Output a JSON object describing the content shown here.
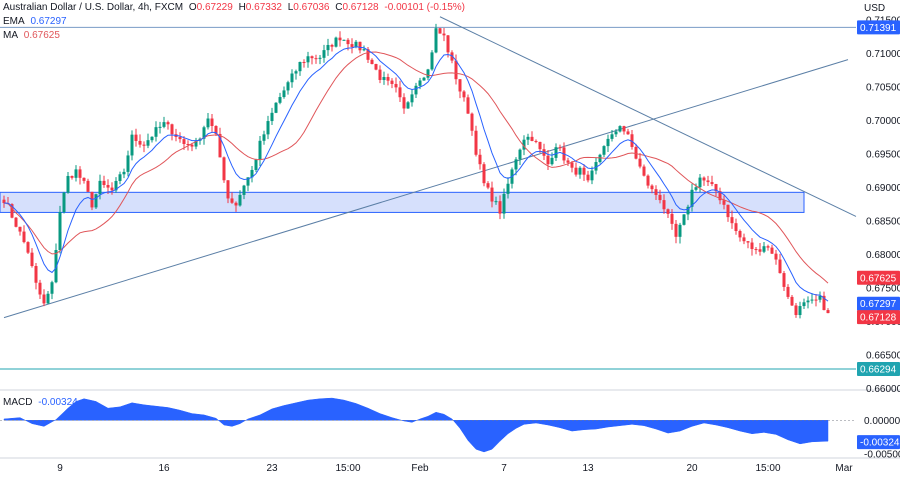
{
  "header": {
    "symbol": "Australian Dollar / U.S. Dollar, 4h, FXCM",
    "o_label": "O",
    "o_value": "0.67229",
    "h_label": "H",
    "h_value": "0.67332",
    "l_label": "L",
    "l_value": "0.67036",
    "c_label": "C",
    "c_value": "0.67128",
    "change": "-0.00101 (-0.15%)"
  },
  "indicators": {
    "ema_label": "EMA",
    "ema_value": "0.67297",
    "ma_label": "MA",
    "ma_value": "0.67625",
    "macd_label": "MACD",
    "macd_value": "-0.00324"
  },
  "colors": {
    "up": "#089981",
    "down": "#f23645",
    "ema": "#2962ff",
    "ma": "#e0565a",
    "trendline": "#5b7fa6",
    "zone_fill": "#c8d6fb",
    "zone_border": "#2962ff",
    "level_line": "#7a9cc6",
    "teal": "#20a4b0",
    "macd_fill": "#2962ff"
  },
  "chart_data": {
    "type": "candlestick",
    "currency": "USD",
    "price_axis": {
      "ticks": [
        "0.71500",
        "0.71000",
        "0.70500",
        "0.70000",
        "0.69500",
        "0.69000",
        "0.68500",
        "0.68000",
        "0.67500",
        "0.67000",
        "0.66500",
        "0.66000"
      ],
      "tick_values": [
        0.715,
        0.71,
        0.705,
        0.7,
        0.695,
        0.69,
        0.685,
        0.68,
        0.675,
        0.67,
        0.665,
        0.66
      ],
      "range": [
        0.6598,
        0.718
      ]
    },
    "macd_axis": {
      "ticks": [
        "0.00000",
        "-0.00500"
      ],
      "tick_values": [
        0.0,
        -0.005
      ],
      "range": [
        -0.0056,
        0.0045
      ]
    },
    "x_labels": [
      "9",
      "16",
      "23",
      "15:00",
      "Feb",
      "7",
      "13",
      "20",
      "15:00",
      "Mar"
    ],
    "x_label_bars": [
      14,
      40,
      67,
      86,
      104,
      125,
      146,
      172,
      191,
      210
    ],
    "bar_count": 207,
    "price_badges": [
      {
        "label": "0.71391",
        "value": 0.71391,
        "color": "#2962ff"
      },
      {
        "label": "0.67625",
        "value": 0.67625,
        "color": "#f23645"
      },
      {
        "label": "0.67297",
        "value": 0.67297,
        "color": "#2962ff"
      },
      {
        "label": "0.67128",
        "value": 0.67128,
        "color": "#f23645"
      },
      {
        "label": "0.66294",
        "value": 0.66294,
        "color": "#20a4b0"
      }
    ],
    "macd_badge": {
      "label": "-0.00324",
      "value": -0.00324,
      "color": "#2962ff"
    },
    "horizontal_levels": [
      0.71391,
      0.66294
    ],
    "support_zone": {
      "from_bar": 0,
      "to_bar": 200,
      "low": 0.6863,
      "high": 0.6893
    },
    "trendlines": [
      {
        "from": [
          0,
          0.6706
        ],
        "to": [
          211,
          0.7091
        ]
      },
      {
        "from": [
          109,
          0.7155
        ],
        "to": [
          213,
          0.6857
        ]
      }
    ],
    "close_anchors": [
      [
        0,
        0.6883
      ],
      [
        3,
        0.6845
      ],
      [
        6,
        0.6805
      ],
      [
        8,
        0.6755
      ],
      [
        10,
        0.6725
      ],
      [
        12,
        0.6755
      ],
      [
        14,
        0.6865
      ],
      [
        16,
        0.6915
      ],
      [
        18,
        0.6925
      ],
      [
        20,
        0.6905
      ],
      [
        22,
        0.6875
      ],
      [
        24,
        0.6905
      ],
      [
        27,
        0.6895
      ],
      [
        30,
        0.6925
      ],
      [
        32,
        0.6975
      ],
      [
        35,
        0.6965
      ],
      [
        38,
        0.6985
      ],
      [
        40,
        0.6995
      ],
      [
        42,
        0.6985
      ],
      [
        45,
        0.6965
      ],
      [
        48,
        0.6965
      ],
      [
        51,
        0.7005
      ],
      [
        53,
        0.6975
      ],
      [
        56,
        0.6885
      ],
      [
        58,
        0.6875
      ],
      [
        60,
        0.6905
      ],
      [
        62,
        0.6925
      ],
      [
        64,
        0.6965
      ],
      [
        66,
        0.6995
      ],
      [
        68,
        0.7025
      ],
      [
        70,
        0.7045
      ],
      [
        72,
        0.7065
      ],
      [
        74,
        0.7085
      ],
      [
        76,
        0.7095
      ],
      [
        79,
        0.7095
      ],
      [
        82,
        0.7115
      ],
      [
        84,
        0.7125
      ],
      [
        87,
        0.7115
      ],
      [
        90,
        0.7105
      ],
      [
        92,
        0.7085
      ],
      [
        94,
        0.7065
      ],
      [
        96,
        0.7055
      ],
      [
        98,
        0.7045
      ],
      [
        100,
        0.7015
      ],
      [
        102,
        0.7045
      ],
      [
        104,
        0.7065
      ],
      [
        106,
        0.7075
      ],
      [
        108,
        0.7135
      ],
      [
        110,
        0.7125
      ],
      [
        112,
        0.7085
      ],
      [
        114,
        0.7045
      ],
      [
        116,
        0.7015
      ],
      [
        118,
        0.6955
      ],
      [
        120,
        0.6905
      ],
      [
        122,
        0.6885
      ],
      [
        124,
        0.6865
      ],
      [
        126,
        0.6905
      ],
      [
        128,
        0.6945
      ],
      [
        130,
        0.6975
      ],
      [
        132,
        0.6975
      ],
      [
        134,
        0.6955
      ],
      [
        136,
        0.6935
      ],
      [
        138,
        0.6965
      ],
      [
        140,
        0.6945
      ],
      [
        142,
        0.6925
      ],
      [
        144,
        0.6925
      ],
      [
        146,
        0.6905
      ],
      [
        148,
        0.6935
      ],
      [
        150,
        0.6965
      ],
      [
        152,
        0.6975
      ],
      [
        154,
        0.6995
      ],
      [
        156,
        0.6975
      ],
      [
        158,
        0.6945
      ],
      [
        160,
        0.6915
      ],
      [
        162,
        0.6895
      ],
      [
        164,
        0.6885
      ],
      [
        166,
        0.6855
      ],
      [
        168,
        0.6825
      ],
      [
        170,
        0.6855
      ],
      [
        172,
        0.6895
      ],
      [
        174,
        0.6915
      ],
      [
        176,
        0.6905
      ],
      [
        178,
        0.6895
      ],
      [
        180,
        0.6875
      ],
      [
        182,
        0.6845
      ],
      [
        184,
        0.6825
      ],
      [
        186,
        0.6815
      ],
      [
        188,
        0.6805
      ],
      [
        190,
        0.6815
      ],
      [
        192,
        0.6805
      ],
      [
        194,
        0.6775
      ],
      [
        196,
        0.6735
      ],
      [
        198,
        0.6715
      ],
      [
        200,
        0.6725
      ],
      [
        202,
        0.6728
      ],
      [
        204,
        0.6733
      ],
      [
        206,
        0.6713
      ]
    ],
    "macd_anchors": [
      [
        0,
        0.0002
      ],
      [
        4,
        0.0004
      ],
      [
        7,
        -0.0005
      ],
      [
        10,
        -0.0009
      ],
      [
        13,
        0.0001
      ],
      [
        16,
        0.0018
      ],
      [
        18,
        0.0028
      ],
      [
        20,
        0.0032
      ],
      [
        23,
        0.0028
      ],
      [
        26,
        0.0018
      ],
      [
        29,
        0.002
      ],
      [
        32,
        0.0026
      ],
      [
        35,
        0.0023
      ],
      [
        38,
        0.0021
      ],
      [
        41,
        0.0019
      ],
      [
        44,
        0.0015
      ],
      [
        47,
        0.001
      ],
      [
        50,
        0.0008
      ],
      [
        53,
        0.0003
      ],
      [
        55,
        -0.0007
      ],
      [
        57,
        -0.0009
      ],
      [
        59,
        -0.0005
      ],
      [
        61,
        0.0002
      ],
      [
        64,
        0.0008
      ],
      [
        67,
        0.0017
      ],
      [
        70,
        0.0022
      ],
      [
        73,
        0.0026
      ],
      [
        76,
        0.003
      ],
      [
        79,
        0.0032
      ],
      [
        82,
        0.0033
      ],
      [
        85,
        0.003
      ],
      [
        88,
        0.0025
      ],
      [
        91,
        0.0018
      ],
      [
        94,
        0.001
      ],
      [
        97,
        0.0004
      ],
      [
        100,
        -0.0001
      ],
      [
        102,
        -0.0003
      ],
      [
        104,
        0.0002
      ],
      [
        106,
        0.0006
      ],
      [
        108,
        0.0012
      ],
      [
        110,
        0.0009
      ],
      [
        112,
        0.0002
      ],
      [
        114,
        -0.0012
      ],
      [
        116,
        -0.003
      ],
      [
        118,
        -0.0043
      ],
      [
        120,
        -0.0047
      ],
      [
        122,
        -0.0043
      ],
      [
        124,
        -0.0031
      ],
      [
        126,
        -0.002
      ],
      [
        128,
        -0.0012
      ],
      [
        130,
        -0.0006
      ],
      [
        133,
        -0.0004
      ],
      [
        136,
        -0.0007
      ],
      [
        139,
        -0.0011
      ],
      [
        142,
        -0.0016
      ],
      [
        145,
        -0.0014
      ],
      [
        148,
        -0.0013
      ],
      [
        151,
        -0.001
      ],
      [
        154,
        -0.0008
      ],
      [
        157,
        -0.0006
      ],
      [
        160,
        -0.0008
      ],
      [
        163,
        -0.0013
      ],
      [
        166,
        -0.0019
      ],
      [
        169,
        -0.0016
      ],
      [
        172,
        -0.0009
      ],
      [
        175,
        -0.0004
      ],
      [
        178,
        -0.0007
      ],
      [
        181,
        -0.0011
      ],
      [
        184,
        -0.0016
      ],
      [
        187,
        -0.002
      ],
      [
        190,
        -0.0018
      ],
      [
        193,
        -0.0021
      ],
      [
        196,
        -0.0029
      ],
      [
        199,
        -0.0035
      ],
      [
        202,
        -0.0032
      ],
      [
        206,
        -0.0031
      ]
    ]
  }
}
